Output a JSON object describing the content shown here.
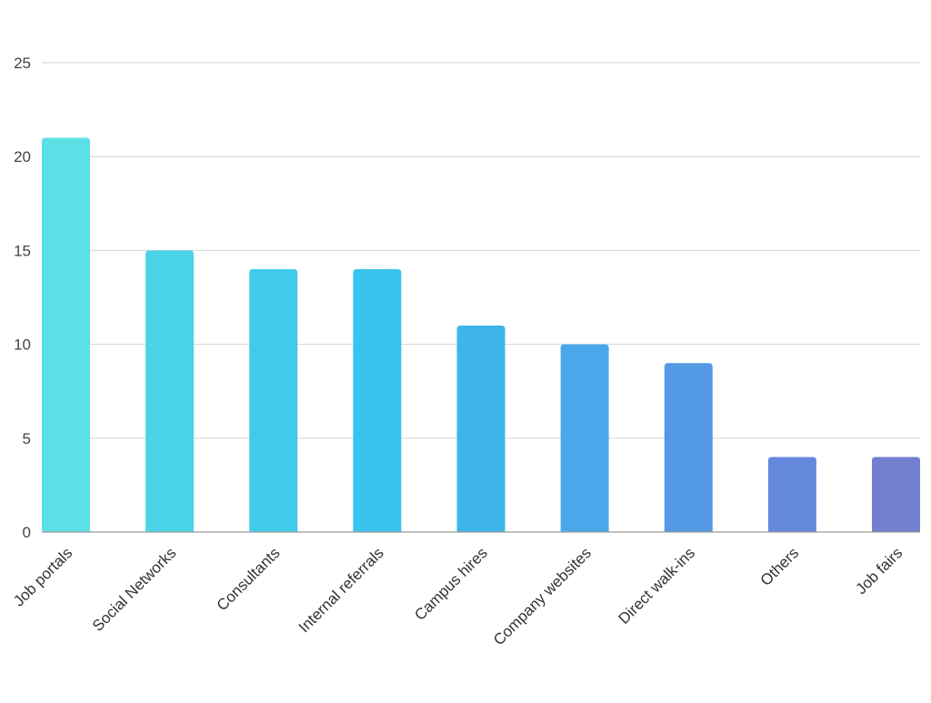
{
  "chart_data": {
    "type": "bar",
    "categories": [
      "Job portals",
      "Social Networks",
      "Consultants",
      "Internal referrals",
      "Campus hires",
      "Company websites",
      "Direct walk-ins",
      "Others",
      "Job fairs"
    ],
    "values": [
      21,
      15,
      14,
      14,
      11,
      10,
      9,
      4,
      4
    ],
    "ylim": [
      0,
      25
    ],
    "yticks": [
      0,
      5,
      10,
      15,
      20,
      25
    ],
    "grid": true,
    "legend": "none",
    "bar_colors": [
      "#5ce0e6",
      "#4bd3e8",
      "#3fcbe9",
      "#38c4ec",
      "#3db5ea",
      "#4aa8ea",
      "#5499e4",
      "#6488dc",
      "#727fcf"
    ],
    "colors": {
      "grid": "#d6d6d6",
      "axis": "#9a9a9a",
      "tick_text": "#444444",
      "label_text": "#333333"
    }
  }
}
